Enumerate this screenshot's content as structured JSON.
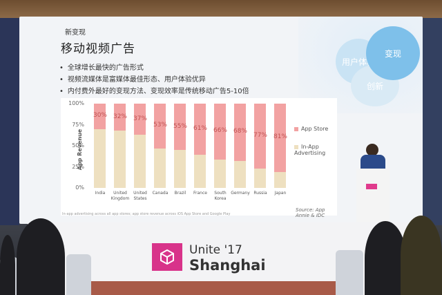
{
  "slide": {
    "section": "新变现",
    "title": "移动视频广告",
    "bullets": [
      "全球增长最快的广告形式",
      "视频流媒体是富媒体最佳形态、用户体验优异",
      "内付费外最好的变现方法、变现效率是传统移动广告5-10倍"
    ],
    "circles": [
      "用户体验",
      "变现",
      "创新"
    ],
    "source": "Source: App Annie & IDC",
    "footnote": "In-app advertising across all app stores; app store revenue across iOS App Store and Google Play"
  },
  "chart_data": {
    "type": "bar",
    "stacked": true,
    "ylabel": "App Revenue",
    "ylim": [
      0,
      100
    ],
    "yticks": [
      "0%",
      "25%",
      "50%",
      "75%",
      "100%"
    ],
    "categories": [
      "India",
      "United Kingdom",
      "United States",
      "Canada",
      "Brazil",
      "France",
      "South Korea",
      "Germany",
      "Russia",
      "Japan"
    ],
    "series": [
      {
        "name": "App Store",
        "values": [
          30,
          32,
          37,
          53,
          55,
          61,
          66,
          68,
          77,
          81
        ],
        "color": "#f2a2a2"
      },
      {
        "name": "In-App Advertising",
        "values": [
          70,
          68,
          63,
          47,
          45,
          39,
          34,
          32,
          23,
          19
        ],
        "color": "#eee0c0"
      }
    ],
    "labels": [
      "30%",
      "32%",
      "37%",
      "53%",
      "55%",
      "61%",
      "66%",
      "68%",
      "77%",
      "81%"
    ],
    "legend": "right"
  },
  "event": {
    "name_top": "Unite '17",
    "name_bottom": "Shanghai",
    "brand_color": "#d8338a"
  }
}
